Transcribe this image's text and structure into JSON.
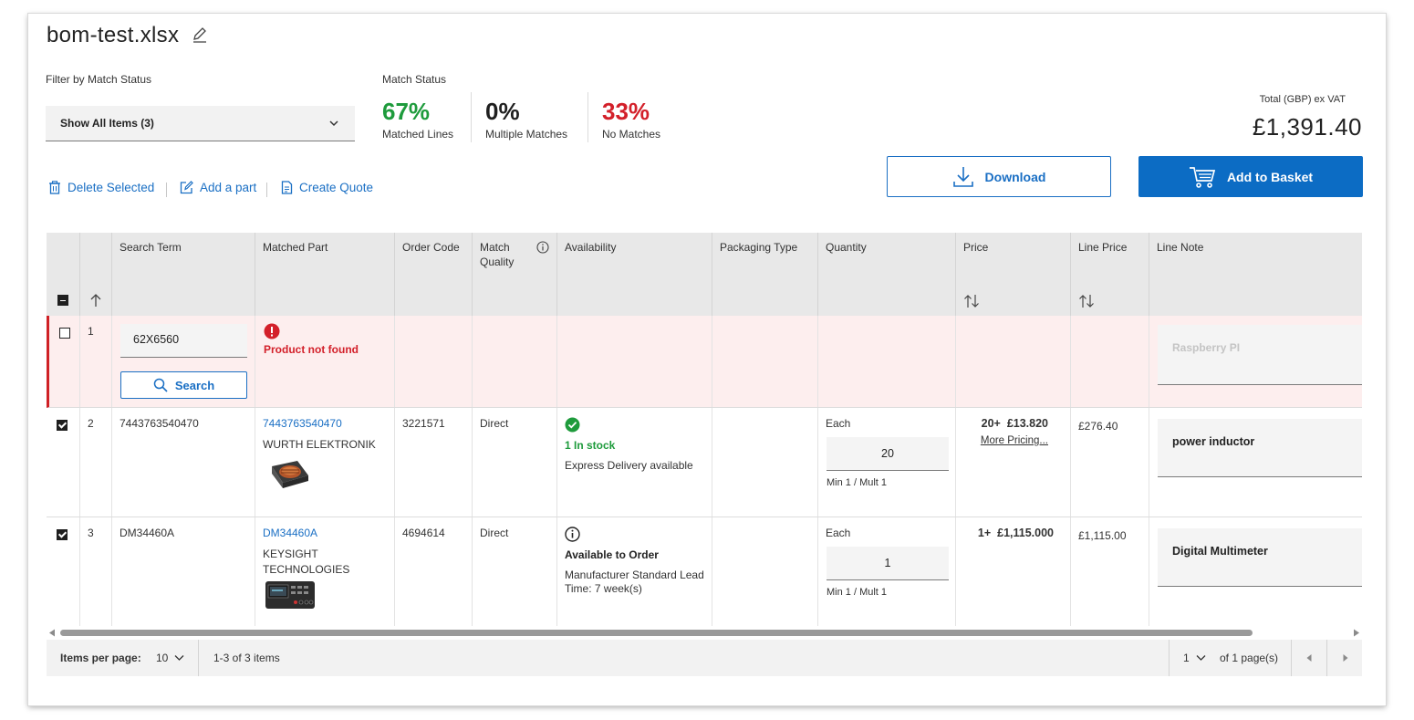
{
  "file": {
    "title": "bom-test.xlsx"
  },
  "filter": {
    "label": "Filter by Match Status",
    "selected": "Show All Items (3)"
  },
  "match_status": {
    "label": "Match Status",
    "stats": [
      {
        "pct": "67%",
        "caption": "Matched Lines",
        "color": "#1e9b3c"
      },
      {
        "pct": "0%",
        "caption": "Multiple Matches",
        "color": "#1f1f1f"
      },
      {
        "pct": "33%",
        "caption": "No Matches",
        "color": "#d3202a"
      }
    ]
  },
  "total": {
    "label": "Total (GBP) ex VAT",
    "value": "£1,391.40"
  },
  "buttons": {
    "download": "Download",
    "add_to_basket": "Add to Basket"
  },
  "actions": {
    "delete": "Delete Selected",
    "add_part": "Add a part",
    "create_quote": "Create Quote"
  },
  "columns": {
    "search_term": "Search Term",
    "matched_part": "Matched Part",
    "order_code": "Order Code",
    "match_quality_1": "Match",
    "match_quality_2": "Quality",
    "availability": "Availability",
    "packaging": "Packaging Type",
    "quantity": "Quantity",
    "price": "Price",
    "line_price": "Line Price",
    "line_note": "Line Note"
  },
  "rows": [
    {
      "num": "1",
      "search_value": "62X6560",
      "search_button": "Search",
      "error": "Product not found",
      "note_placeholder": "Raspberry PI"
    },
    {
      "num": "2",
      "search_term": "7443763540470",
      "part_number": "7443763540470",
      "manufacturer": "WURTH ELEKTRONIK",
      "order_code": "3221571",
      "match_quality": "Direct",
      "availability_status": "1 In stock",
      "availability_detail": "Express Delivery available",
      "qty_unit": "Each",
      "qty": "20",
      "qty_rule": "Min 1 / Mult 1",
      "price_break": "20+",
      "price": "£13.820",
      "more_pricing": "More Pricing...",
      "line_price": "£276.40",
      "note": "power inductor"
    },
    {
      "num": "3",
      "search_term": "DM34460A",
      "part_number": "DM34460A",
      "manufacturer_1": "KEYSIGHT",
      "manufacturer_2": "TECHNOLOGIES",
      "order_code": "4694614",
      "match_quality": "Direct",
      "availability_status": "Available to Order",
      "availability_detail_1": "Manufacturer Standard Lead",
      "availability_detail_2": "Time: 7 week(s)",
      "qty_unit": "Each",
      "qty": "1",
      "qty_rule": "Min 1 / Mult 1",
      "price_break": "1+",
      "price": "£1,115.000",
      "line_price": "£1,115.00",
      "note": "Digital Multimeter"
    }
  ],
  "pager": {
    "items_label": "Items per page:",
    "items_value": "10",
    "range": "1-3 of 3 items",
    "page": "1",
    "of_pages": "of 1 page(s)"
  }
}
